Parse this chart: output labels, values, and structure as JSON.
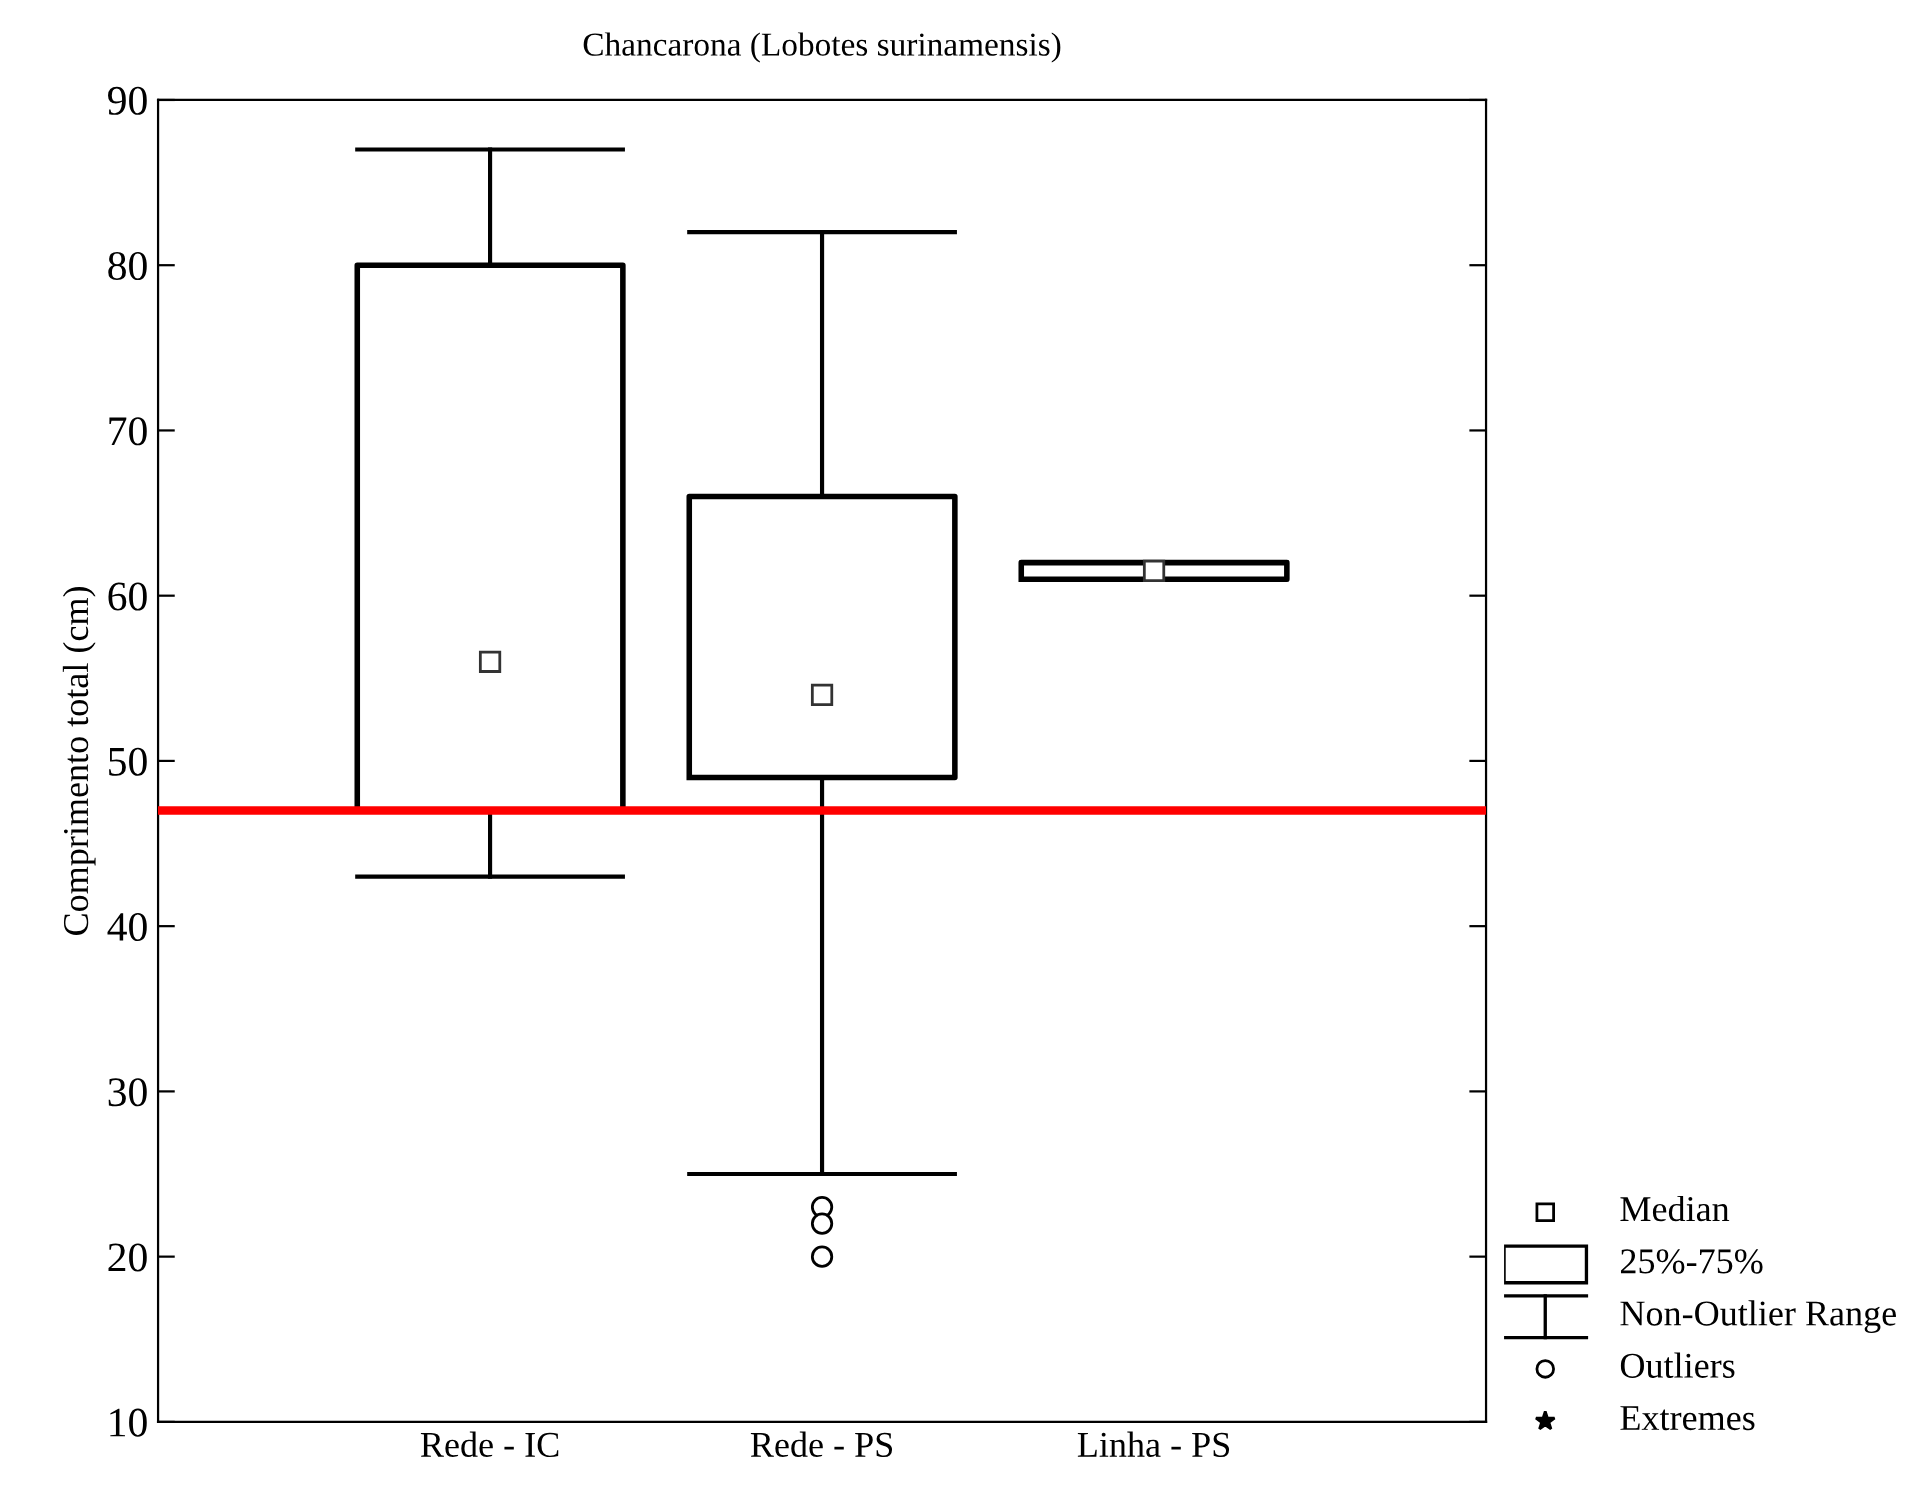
{
  "chart_data": {
    "type": "box",
    "title": "Chancarona (Lobotes surinamensis)",
    "ylabel": "Comprimento total (cm)",
    "categories": [
      "Rede - IC",
      "Rede - PS",
      "Linha - PS"
    ],
    "boxes": [
      {
        "low": 43,
        "q1": 47,
        "median": 56,
        "q3": 80,
        "high": 87
      },
      {
        "low": 25,
        "q1": 49,
        "median": 54,
        "q3": 66,
        "high": 82,
        "outliers": [
          23,
          22,
          20
        ]
      },
      {
        "low": 61,
        "q1": 61,
        "median": 61.5,
        "q3": 62,
        "high": 62
      }
    ],
    "ylim": [
      10,
      90
    ],
    "yticks": [
      10,
      20,
      30,
      40,
      50,
      60,
      70,
      80,
      90
    ],
    "ref_lines": [
      {
        "axis": "y",
        "value": 47,
        "color": "#ff0000"
      }
    ],
    "annotations": [
      "Median",
      "25%-75%",
      "Non-Outlier Range",
      "Outliers",
      "Extremes"
    ],
    "grid": false
  }
}
